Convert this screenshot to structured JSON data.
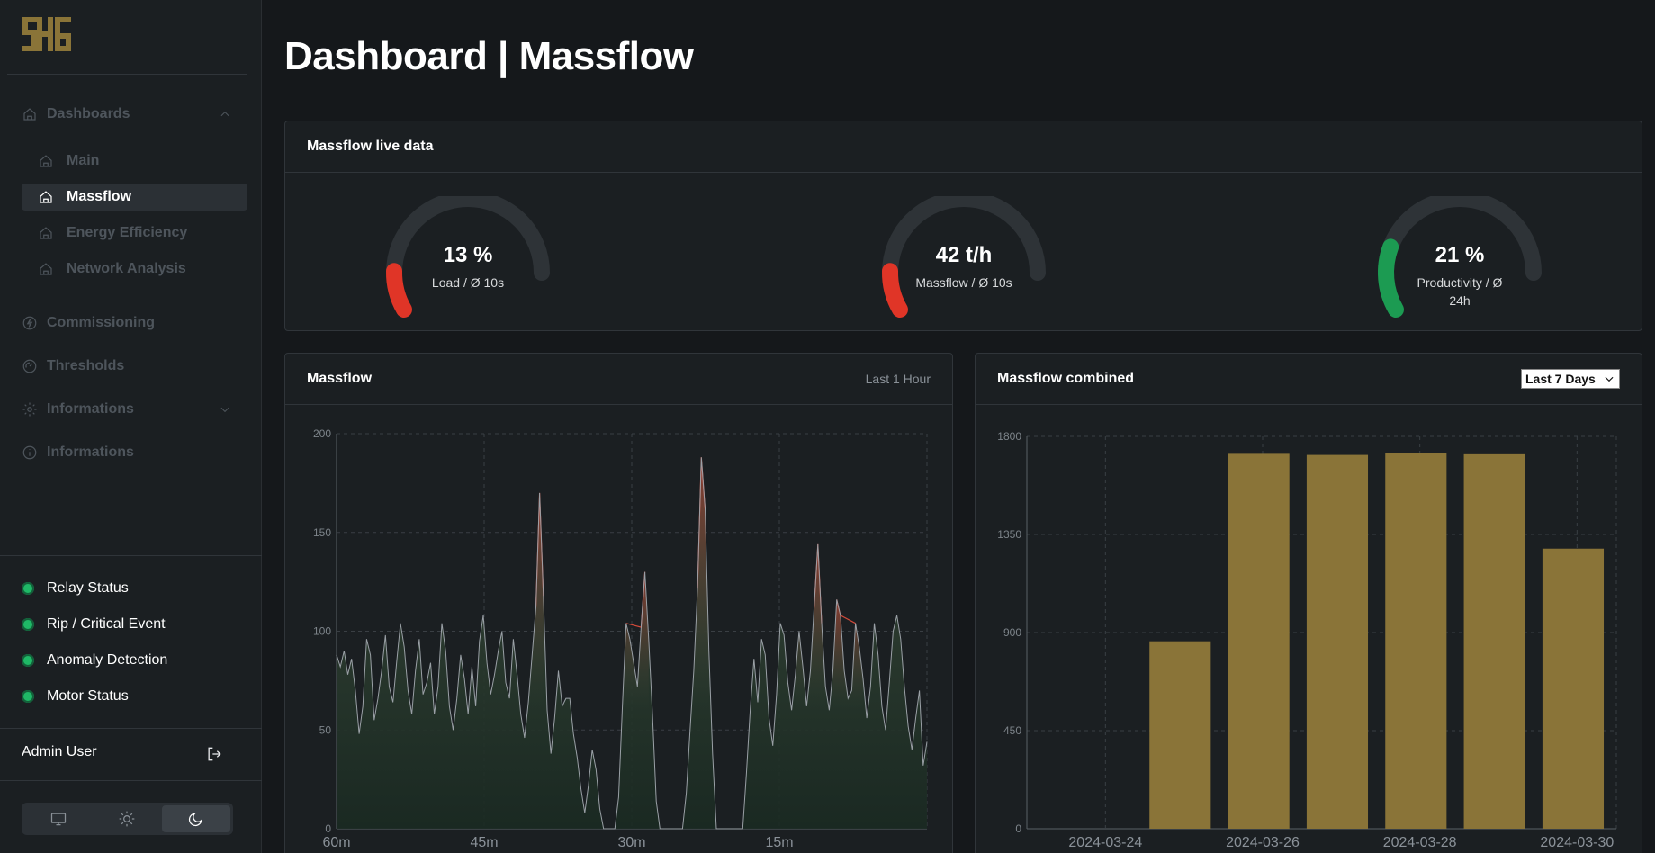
{
  "colors": {
    "accent": "#8a7438",
    "status_ok": "#1fb866",
    "gauge_red": "#e03527",
    "gauge_green": "#1c9b52",
    "gauge_track": "#2e3337",
    "line_normal": "#9aa0a6",
    "line_peak": "#d24a3a"
  },
  "sidebar": {
    "logo_text": "SHG",
    "nav": [
      {
        "label": "Dashboards",
        "icon": "home-icon",
        "expanded": true
      },
      {
        "label": "Commissioning",
        "icon": "bolt-icon"
      },
      {
        "label": "Thresholds",
        "icon": "gauge-icon"
      },
      {
        "label": "Informations",
        "icon": "gear-icon",
        "expanded": false
      },
      {
        "label": "Informations",
        "icon": "info-icon"
      }
    ],
    "sub": [
      {
        "label": "Main",
        "active": false
      },
      {
        "label": "Massflow",
        "active": true
      },
      {
        "label": "Energy Efficiency",
        "active": false
      },
      {
        "label": "Network Analysis",
        "active": false
      }
    ],
    "status": [
      {
        "label": "Relay Status"
      },
      {
        "label": "Rip / Critical Event"
      },
      {
        "label": "Anomaly Detection"
      },
      {
        "label": "Motor Status"
      }
    ],
    "user": "Admin User",
    "theme": {
      "active": "dark"
    }
  },
  "page": {
    "title": "Dashboard | Massflow"
  },
  "live": {
    "title": "Massflow live data",
    "gauges": [
      {
        "value_text": "13 %",
        "label": "Load / Ø 10s",
        "fraction": 0.13,
        "color": "#e03527"
      },
      {
        "value_text": "42 t/h",
        "label": "Massflow / Ø 10s",
        "fraction": 0.13,
        "color": "#e03527"
      },
      {
        "value_text": "21 %",
        "label": "Productivity / Ø 24h",
        "fraction": 0.21,
        "color": "#1c9b52"
      }
    ]
  },
  "massflow_card": {
    "title": "Massflow",
    "range": "Last 1 Hour"
  },
  "combined_card": {
    "title": "Massflow combined",
    "select_value": "Last 7 Days"
  },
  "chart_data": [
    {
      "type": "area",
      "title": "Massflow",
      "xlabel": "",
      "ylabel": "",
      "x_ticks": [
        "60m",
        "45m",
        "30m",
        "15m"
      ],
      "ylim": [
        0,
        200
      ],
      "y_ticks": [
        0,
        50,
        100,
        150,
        200
      ],
      "grid": true,
      "series": [
        {
          "values": [
            88,
            82,
            90,
            78,
            86,
            70,
            48,
            62,
            96,
            88,
            55,
            66,
            80,
            98,
            72,
            64,
            85,
            104,
            92,
            70,
            58,
            80,
            96,
            68,
            74,
            84,
            58,
            72,
            104,
            90,
            62,
            50,
            66,
            88,
            76,
            58,
            82,
            62,
            95,
            108,
            84,
            68,
            78,
            90,
            100,
            74,
            66,
            96,
            78,
            58,
            46,
            64,
            88,
            112,
            170,
            118,
            60,
            38,
            56,
            80,
            62,
            66,
            66,
            48,
            36,
            20,
            8,
            22,
            40,
            30,
            10,
            0,
            0,
            0,
            0,
            16,
            62,
            104,
            96,
            84,
            72,
            102,
            130,
            96,
            58,
            14,
            0,
            0,
            0,
            0,
            0,
            0,
            0,
            18,
            50,
            80,
            122,
            188,
            162,
            90,
            38,
            0,
            0,
            0,
            0,
            0,
            0,
            0,
            0,
            28,
            60,
            86,
            64,
            96,
            88,
            56,
            42,
            68,
            104,
            98,
            74,
            60,
            78,
            100,
            82,
            62,
            80,
            112,
            144,
            104,
            72,
            60,
            80,
            116,
            108,
            80,
            66,
            70,
            104,
            92,
            76,
            56,
            72,
            104,
            88,
            62,
            50,
            74,
            100,
            108,
            96,
            72,
            52,
            40,
            56,
            70,
            32,
            44
          ]
        }
      ]
    },
    {
      "type": "bar",
      "title": "Massflow combined",
      "xlabel": "",
      "ylabel": "",
      "categories": [
        "2024-03-24",
        "2024-03-25",
        "2024-03-26",
        "2024-03-27",
        "2024-03-28",
        "2024-03-29",
        "2024-03-30"
      ],
      "x_tick_labels": [
        "2024-03-24",
        "2024-03-26",
        "2024-03-28",
        "2024-03-30"
      ],
      "values": [
        0,
        860,
        1720,
        1715,
        1722,
        1718,
        1285
      ],
      "ylim": [
        0,
        1800
      ],
      "y_ticks": [
        0,
        450,
        900,
        1350,
        1800
      ],
      "grid": true
    }
  ]
}
